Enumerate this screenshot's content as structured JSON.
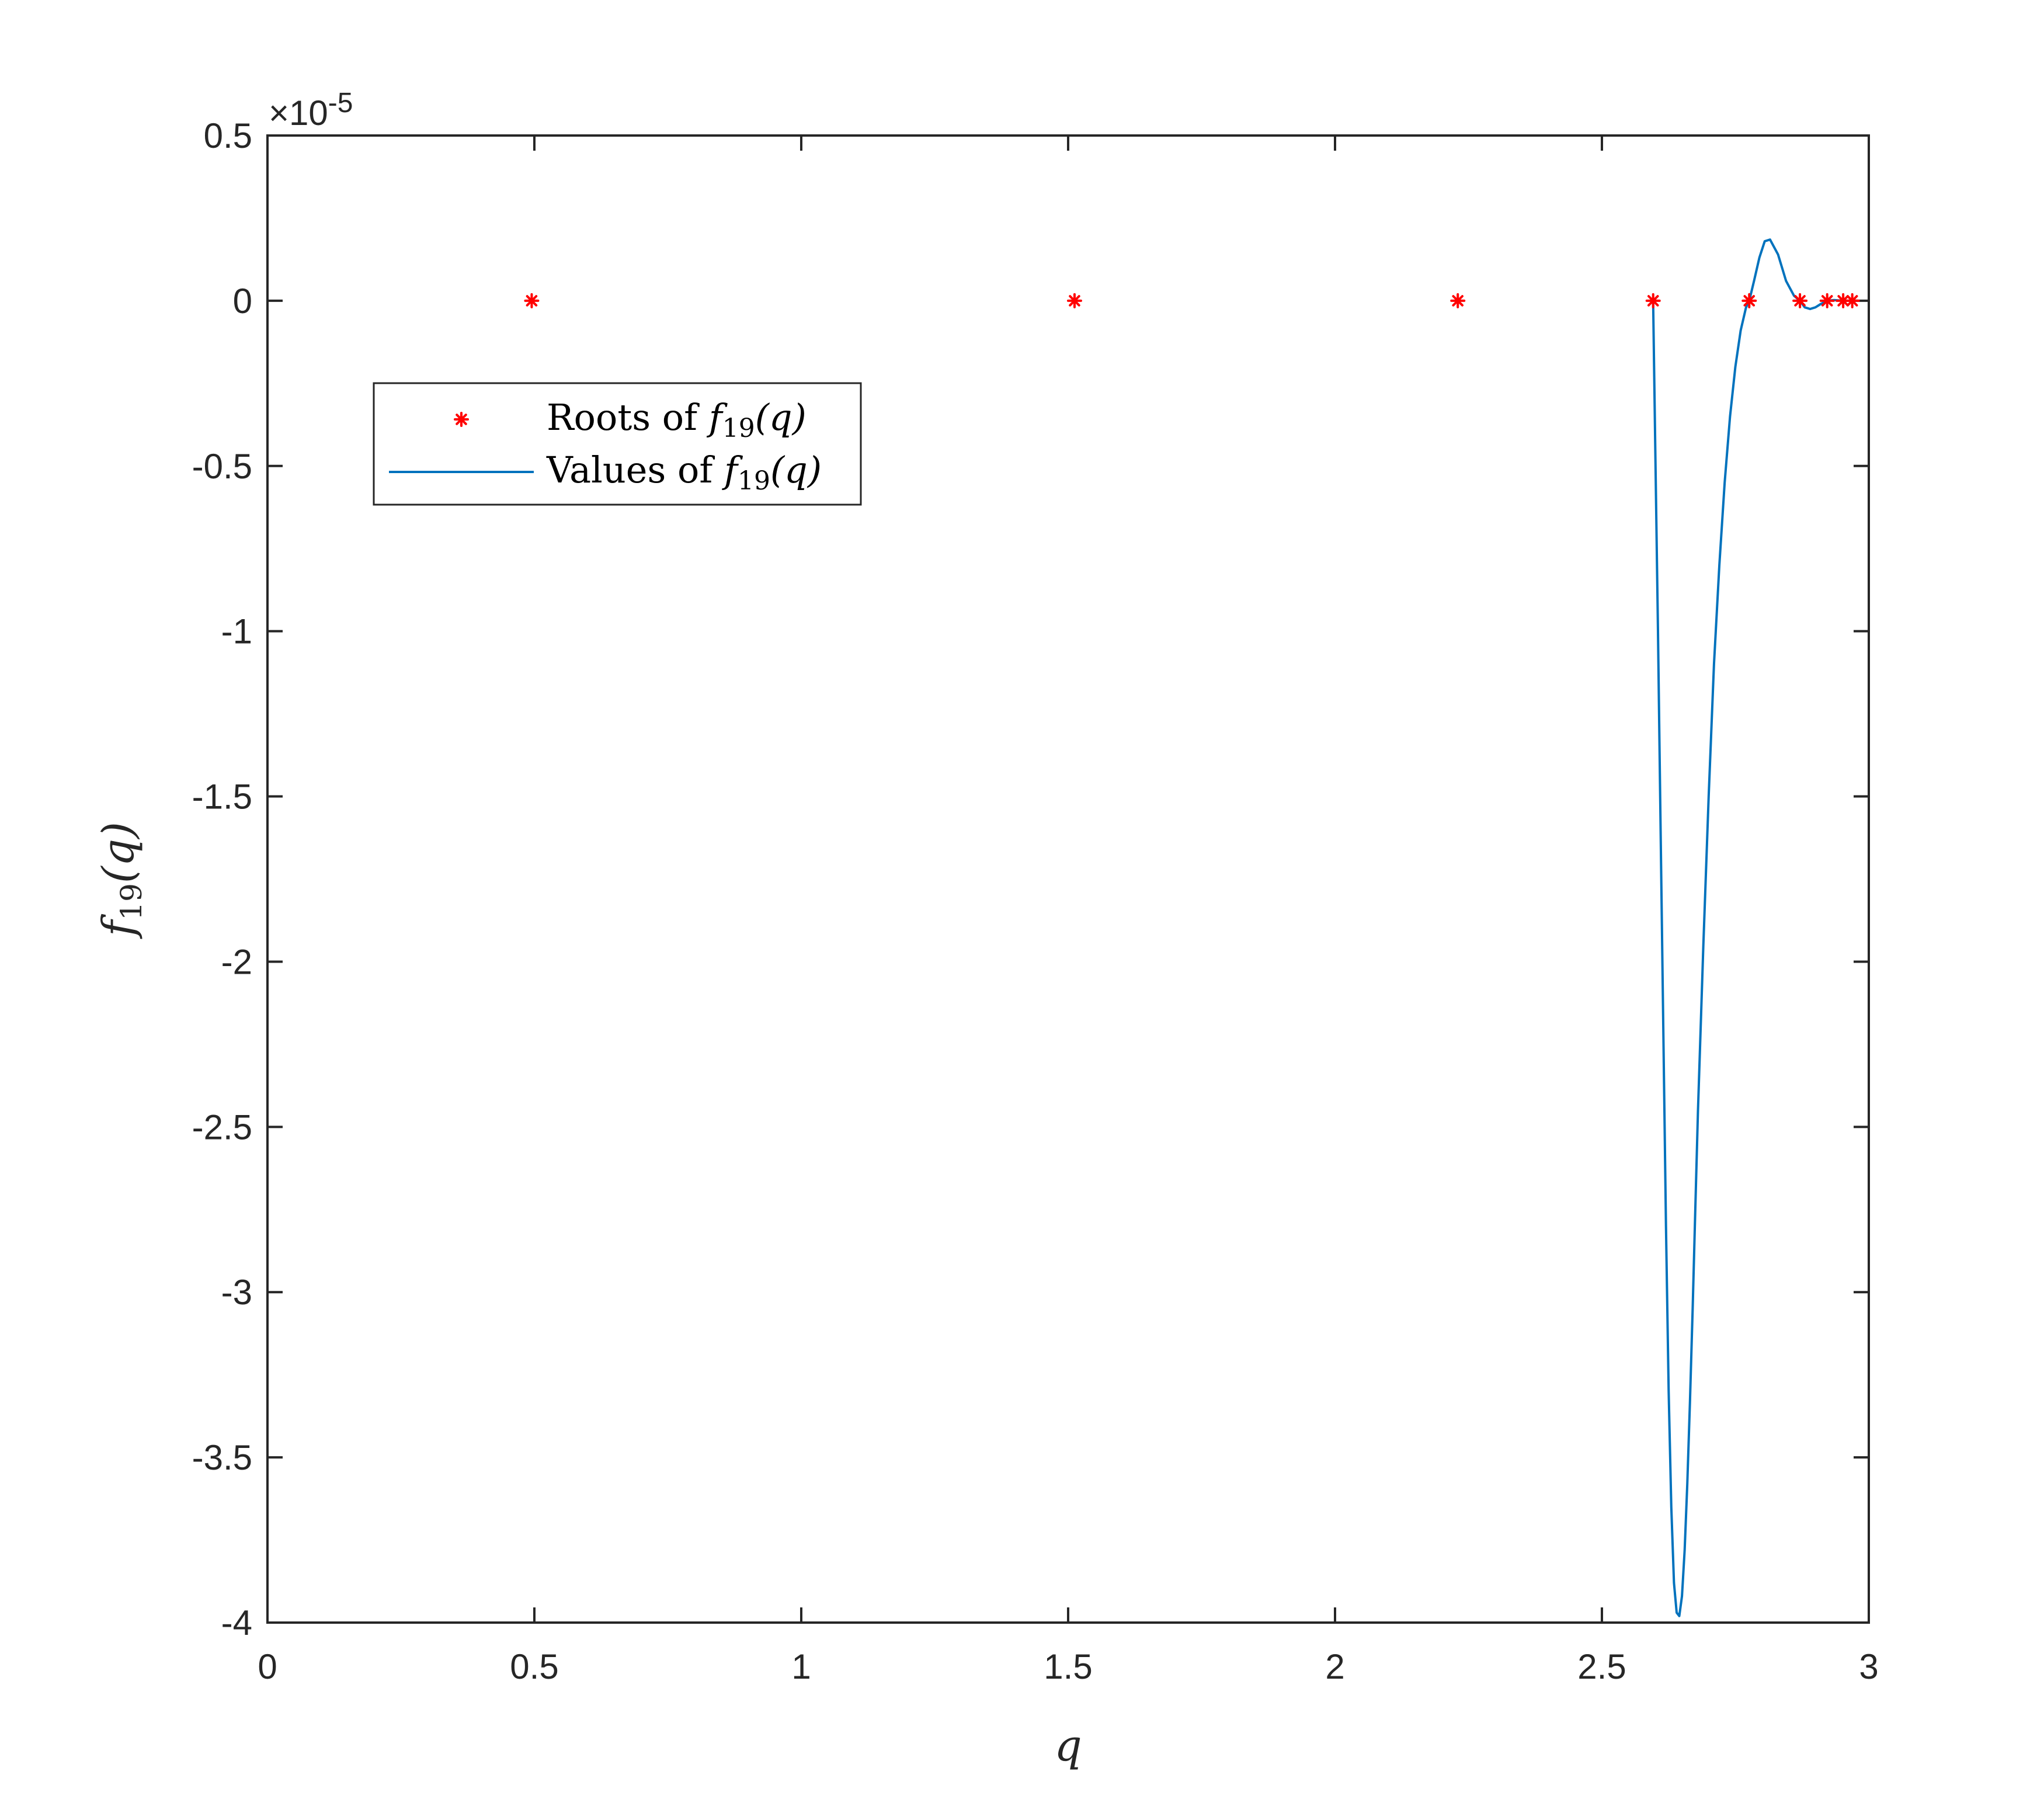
{
  "chart_data": {
    "type": "line",
    "xlabel": "q",
    "ylabel": {
      "base": "f",
      "sub": "19",
      "arg": "(q)"
    },
    "xlim": [
      0,
      3
    ],
    "ylim": [
      -4,
      0.5
    ],
    "y_scale_exponent": {
      "prefix": "×10",
      "power": "-5"
    },
    "xticks": [
      0,
      0.5,
      1,
      1.5,
      2,
      2.5,
      3
    ],
    "xtick_labels": [
      "0",
      "0.5",
      "1",
      "1.5",
      "2",
      "2.5",
      "3"
    ],
    "yticks": [
      0.5,
      0,
      -0.5,
      -1,
      -1.5,
      -2,
      -2.5,
      -3,
      -3.5,
      -4
    ],
    "ytick_labels": [
      "0.5",
      "0",
      "-0.5",
      "-1",
      "-1.5",
      "-2",
      "-2.5",
      "-3",
      "-3.5",
      "-4"
    ],
    "grid": false,
    "legend_position": "upper-left",
    "series": [
      {
        "name": "Roots of f19(q)",
        "legend_prefix": "Roots of ",
        "kind": "scatter",
        "marker": "asterisk",
        "color": "#ff0000",
        "x": [
          0.495,
          1.512,
          2.23,
          2.596,
          2.776,
          2.871,
          2.922,
          2.952,
          2.969
        ],
        "y": [
          0,
          0,
          0,
          0,
          0,
          0,
          0,
          0,
          0
        ]
      },
      {
        "name": "Values of f19(q)",
        "legend_prefix": "Values of ",
        "kind": "line",
        "color": "#0072bd",
        "x": [
          2.596,
          2.6,
          2.605,
          2.61,
          2.615,
          2.62,
          2.625,
          2.63,
          2.635,
          2.64,
          2.645,
          2.65,
          2.655,
          2.66,
          2.665,
          2.67,
          2.675,
          2.68,
          2.69,
          2.7,
          2.71,
          2.72,
          2.73,
          2.74,
          2.75,
          2.76,
          2.77,
          2.776,
          2.785,
          2.795,
          2.805,
          2.815,
          2.83,
          2.845,
          2.86,
          2.871,
          2.88,
          2.89,
          2.9,
          2.91,
          2.922,
          2.935,
          2.952,
          2.96,
          2.969,
          2.98
        ],
        "y": [
          0,
          -0.45,
          -1.0,
          -1.6,
          -2.2,
          -2.8,
          -3.3,
          -3.65,
          -3.88,
          -3.97,
          -3.98,
          -3.92,
          -3.78,
          -3.58,
          -3.33,
          -3.05,
          -2.75,
          -2.45,
          -1.95,
          -1.5,
          -1.1,
          -0.8,
          -0.55,
          -0.35,
          -0.2,
          -0.09,
          -0.02,
          0.0,
          0.06,
          0.13,
          0.18,
          0.185,
          0.14,
          0.06,
          0.015,
          0.0,
          -0.02,
          -0.025,
          -0.02,
          -0.01,
          0.0,
          0.002,
          0.0,
          0.0,
          0.0,
          0.0
        ]
      }
    ]
  }
}
